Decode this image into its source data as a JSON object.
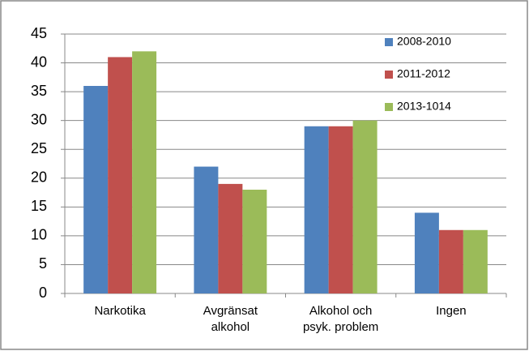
{
  "chart_data": {
    "type": "bar",
    "categories": [
      "Narkotika",
      "Avgränsat alkohol",
      "Alkohol och psyk. problem",
      "Ingen"
    ],
    "series": [
      {
        "name": "2008-2010",
        "color": "#4f81bd",
        "values": [
          36,
          22,
          29,
          14
        ]
      },
      {
        "name": "2011-2012",
        "color": "#c0504d",
        "values": [
          41,
          19,
          29,
          11
        ]
      },
      {
        "name": "2013-1014",
        "color": "#9bbb59",
        "values": [
          42,
          18,
          30,
          11
        ]
      }
    ],
    "ylim": [
      0,
      45
    ],
    "yticks": [
      0,
      5,
      10,
      15,
      20,
      25,
      30,
      35,
      40,
      45
    ],
    "grid": true,
    "legend": "top-right"
  }
}
